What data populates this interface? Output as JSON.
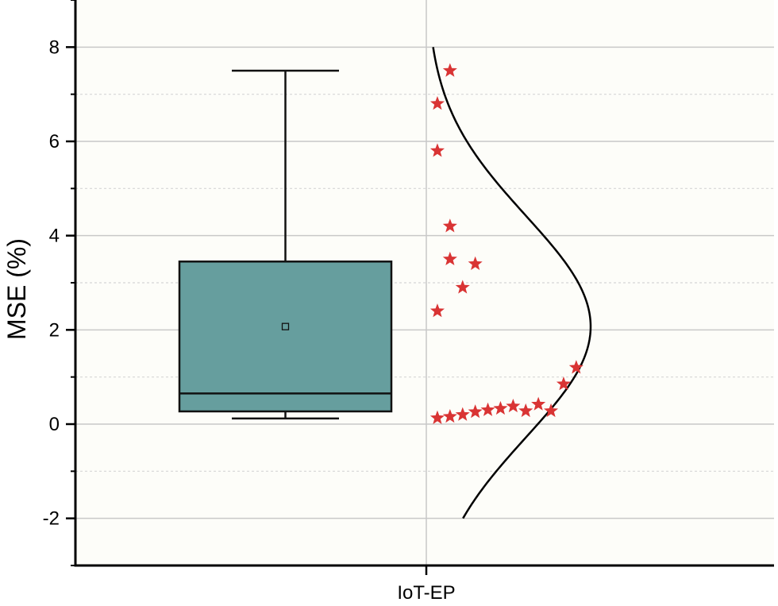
{
  "chart_data": {
    "type": "box",
    "title": "",
    "ylabel": "MSE (%)",
    "xlabel": "",
    "categories": [
      "IoT-EP"
    ],
    "ylim": [
      -3,
      9
    ],
    "yticks": [
      -2,
      0,
      2,
      4,
      6,
      8
    ],
    "ytick_labels": [
      "-2",
      "0",
      "2",
      "4",
      "6",
      "8"
    ],
    "grid": true,
    "minor_grid": true,
    "box": {
      "whisker_low": 0.12,
      "q1": 0.27,
      "median": 0.65,
      "q3": 3.45,
      "whisker_high": 7.5,
      "mean": 2.07
    },
    "points": [
      {
        "x": 0.15,
        "y": 7.5
      },
      {
        "x": 0.05,
        "y": 6.8
      },
      {
        "x": 0.05,
        "y": 5.8
      },
      {
        "x": 0.15,
        "y": 4.2
      },
      {
        "x": 0.15,
        "y": 3.5
      },
      {
        "x": 0.35,
        "y": 3.4
      },
      {
        "x": 0.25,
        "y": 2.9
      },
      {
        "x": 0.05,
        "y": 2.4
      },
      {
        "x": 1.15,
        "y": 1.2
      },
      {
        "x": 1.05,
        "y": 0.85
      },
      {
        "x": 0.95,
        "y": 0.28
      },
      {
        "x": 0.85,
        "y": 0.42
      },
      {
        "x": 0.75,
        "y": 0.28
      },
      {
        "x": 0.65,
        "y": 0.38
      },
      {
        "x": 0.55,
        "y": 0.33
      },
      {
        "x": 0.45,
        "y": 0.3
      },
      {
        "x": 0.35,
        "y": 0.26
      },
      {
        "x": 0.25,
        "y": 0.2
      },
      {
        "x": 0.15,
        "y": 0.16
      },
      {
        "x": 0.05,
        "y": 0.13
      }
    ],
    "normal_curve": {
      "mean": 2.07,
      "sd": 2.35,
      "y_range": [
        -2,
        8
      ]
    },
    "colors": {
      "box_fill": "#669e9e",
      "box_edge": "#111111",
      "points": "#d93434",
      "curve": "#000000",
      "plot_bg": "#fdfdf9",
      "grid_major": "#c8c8c8",
      "grid_minor": "#d6d6d6"
    }
  }
}
